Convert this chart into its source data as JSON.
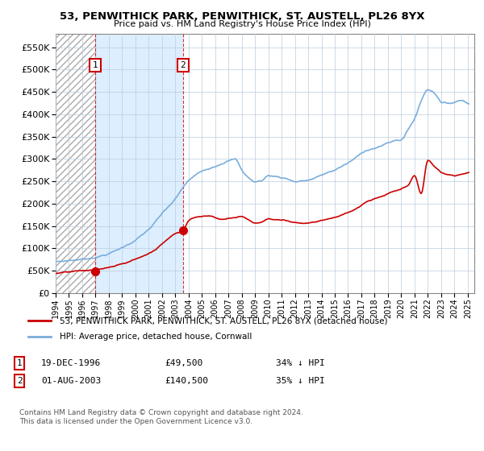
{
  "title": "53, PENWITHICK PARK, PENWITHICK, ST. AUSTELL, PL26 8YX",
  "subtitle": "Price paid vs. HM Land Registry's House Price Index (HPI)",
  "legend_line1": "53, PENWITHICK PARK, PENWITHICK, ST. AUSTELL, PL26 8YX (detached house)",
  "legend_line2": "HPI: Average price, detached house, Cornwall",
  "footnote": "Contains HM Land Registry data © Crown copyright and database right 2024.\nThis data is licensed under the Open Government Licence v3.0.",
  "sale1_date": "19-DEC-1996",
  "sale1_price": "£49,500",
  "sale1_hpi": "34% ↓ HPI",
  "sale1_year": 1996.97,
  "sale1_value": 49500,
  "sale2_date": "01-AUG-2003",
  "sale2_price": "£140,500",
  "sale2_hpi": "35% ↓ HPI",
  "sale2_year": 2003.58,
  "sale2_value": 140500,
  "red_color": "#cc0000",
  "blue_color": "#7aaddc",
  "shade_color": "#ddeeff",
  "hatch_color": "#cccccc",
  "grid_color": "#bbccdd",
  "xmin": 1994.0,
  "xmax": 2025.5,
  "ymin": 0,
  "ymax": 580000,
  "yticks": [
    0,
    50000,
    100000,
    150000,
    200000,
    250000,
    300000,
    350000,
    400000,
    450000,
    500000,
    550000
  ],
  "xticks": [
    1994,
    1995,
    1996,
    1997,
    1998,
    1999,
    2000,
    2001,
    2002,
    2003,
    2004,
    2005,
    2006,
    2007,
    2008,
    2009,
    2010,
    2011,
    2012,
    2013,
    2014,
    2015,
    2016,
    2017,
    2018,
    2019,
    2020,
    2021,
    2022,
    2023,
    2024,
    2025
  ]
}
